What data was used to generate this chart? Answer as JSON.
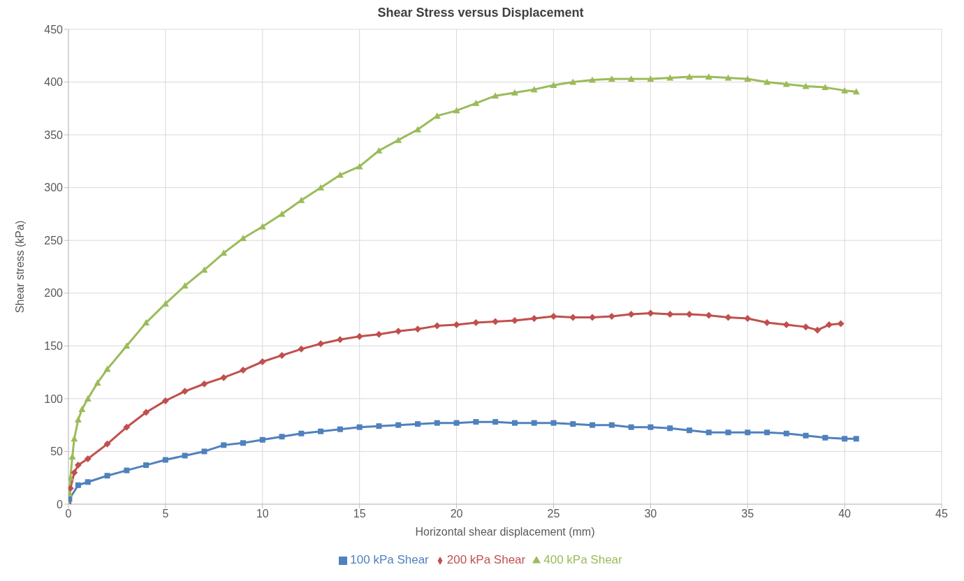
{
  "chart_data": {
    "type": "line",
    "title": "Shear Stress versus Displacement",
    "xlabel": "Horizontal shear displacement (mm)",
    "ylabel": "Shear stress (kPa)",
    "xlim": [
      0,
      45
    ],
    "xticks": [
      0,
      5,
      10,
      15,
      20,
      25,
      30,
      35,
      40,
      45
    ],
    "ylim": [
      0,
      450
    ],
    "yticks": [
      0,
      50,
      100,
      150,
      200,
      250,
      300,
      350,
      400,
      450
    ],
    "grid": true,
    "legend": "bottom",
    "series": [
      {
        "name": "100 kPa Shear",
        "color": "#4f81bd",
        "marker": "square",
        "x": [
          0,
          0.05,
          0.5,
          1,
          2,
          3,
          4,
          5,
          6,
          7,
          8,
          9,
          10,
          11,
          12,
          13,
          14,
          15,
          16,
          17,
          18,
          19,
          20,
          21,
          22,
          23,
          24,
          25,
          26,
          27,
          28,
          29,
          30,
          31,
          32,
          33,
          34,
          35,
          36,
          37,
          38,
          39,
          40,
          40.6
        ],
        "values": [
          0,
          5,
          18,
          21,
          27,
          32,
          37,
          42,
          46,
          50,
          56,
          58,
          61,
          64,
          67,
          69,
          71,
          73,
          74,
          75,
          76,
          77,
          77,
          78,
          78,
          77,
          77,
          77,
          76,
          75,
          75,
          73,
          73,
          72,
          70,
          68,
          68,
          68,
          68,
          67,
          65,
          63,
          62,
          62
        ]
      },
      {
        "name": "200 kPa Shear",
        "color": "#c0504d",
        "marker": "diamond",
        "x": [
          0,
          0.1,
          0.3,
          0.5,
          1,
          2,
          3,
          4,
          5,
          6,
          7,
          8,
          9,
          10,
          11,
          12,
          13,
          14,
          15,
          16,
          17,
          18,
          19,
          20,
          21,
          22,
          23,
          24,
          25,
          26,
          27,
          28,
          29,
          30,
          31,
          32,
          33,
          34,
          35,
          36,
          37,
          38,
          38.6,
          39.2,
          39.8
        ],
        "values": [
          0,
          15,
          30,
          37,
          43,
          57,
          73,
          87,
          98,
          107,
          114,
          120,
          127,
          135,
          141,
          147,
          152,
          156,
          159,
          161,
          164,
          166,
          169,
          170,
          172,
          173,
          174,
          176,
          178,
          177,
          177,
          178,
          180,
          181,
          180,
          180,
          179,
          177,
          176,
          172,
          170,
          168,
          165,
          170,
          171
        ]
      },
      {
        "name": "400 kPa Shear",
        "color": "#9bbb59",
        "marker": "triangle",
        "x": [
          0,
          0.05,
          0.1,
          0.2,
          0.3,
          0.5,
          0.7,
          1,
          1.5,
          2,
          3,
          4,
          5,
          6,
          7,
          8,
          9,
          10,
          11,
          12,
          13,
          14,
          15,
          16,
          17,
          18,
          19,
          20,
          21,
          22,
          23,
          24,
          25,
          26,
          27,
          28,
          29,
          30,
          31,
          32,
          33,
          34,
          35,
          36,
          37,
          38,
          39,
          40,
          40.6
        ],
        "values": [
          0,
          10,
          25,
          45,
          62,
          80,
          90,
          100,
          115,
          128,
          150,
          172,
          190,
          207,
          222,
          238,
          252,
          263,
          275,
          288,
          300,
          312,
          320,
          335,
          345,
          355,
          368,
          373,
          380,
          387,
          390,
          393,
          397,
          400,
          402,
          403,
          403,
          403,
          404,
          405,
          405,
          404,
          403,
          400,
          398,
          396,
          395,
          392,
          391
        ]
      }
    ]
  }
}
